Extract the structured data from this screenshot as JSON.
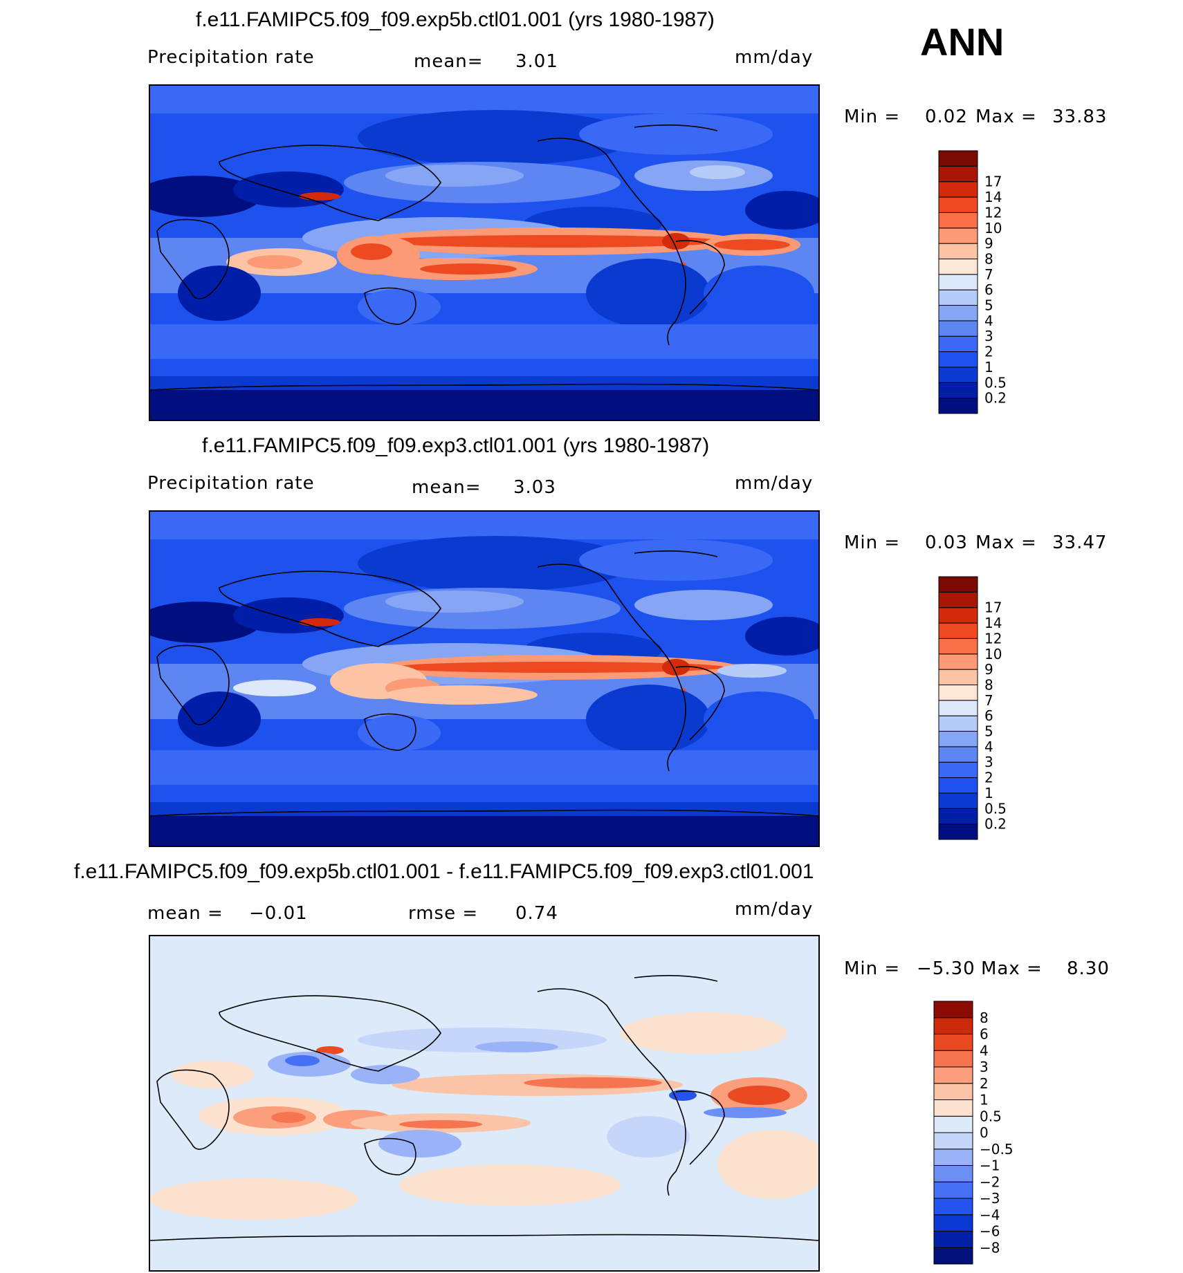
{
  "season": "ANN",
  "panels": [
    {
      "title": "f.e11.FAMIPC5.f09_f09.exp5b.ctl01.001 (yrs 1980-1987)",
      "left_label": "Precipitation rate",
      "mid_label": "mean=",
      "mid_value": "3.01",
      "units": "mm/day",
      "min_label": "Min =",
      "min_value": "0.02",
      "max_label": "Max =",
      "max_value": "33.83"
    },
    {
      "title": "f.e11.FAMIPC5.f09_f09.exp3.ctl01.001 (yrs 1980-1987)",
      "left_label": "Precipitation rate",
      "mid_label": "mean=",
      "mid_value": "3.03",
      "units": "mm/day",
      "min_label": "Min =",
      "min_value": "0.03",
      "max_label": "Max =",
      "max_value": "33.47"
    },
    {
      "title": "f.e11.FAMIPC5.f09_f09.exp5b.ctl01.001 - f.e11.FAMIPC5.f09_f09.exp3.ctl01.001",
      "left_label": "mean =",
      "left_value": "−0.01",
      "mid_label": "rmse =",
      "mid_value": "0.74",
      "units": "mm/day",
      "min_label": "Min =",
      "min_value": "−5.30",
      "max_label": "Max =",
      "max_value": "8.30"
    }
  ],
  "chart_data": [
    {
      "type": "heatmap",
      "title": "f.e11.FAMIPC5.f09_f09.exp5b.ctl01.001 (yrs 1980-1987)",
      "variable": "Precipitation rate",
      "units": "mm/day",
      "mean": 3.01,
      "min": 0.02,
      "max": 33.83,
      "colorbar_levels": [
        "0.2",
        "0.5",
        "1",
        "2",
        "3",
        "4",
        "5",
        "6",
        "7",
        "8",
        "9",
        "10",
        "12",
        "14",
        "17"
      ],
      "colorbar_colors": [
        "#000f80",
        "#001ea8",
        "#0a3ad0",
        "#1d52ef",
        "#3a6af5",
        "#5e86f3",
        "#86a6f5",
        "#b6ccf8",
        "#dde9fb",
        "#fde6d6",
        "#fcc3a4",
        "#fb9a74",
        "#f8704a",
        "#ee4a22",
        "#d32a0c",
        "#a81605",
        "#7a0a02"
      ]
    },
    {
      "type": "heatmap",
      "title": "f.e11.FAMIPC5.f09_f09.exp3.ctl01.001 (yrs 1980-1987)",
      "variable": "Precipitation rate",
      "units": "mm/day",
      "mean": 3.03,
      "min": 0.03,
      "max": 33.47,
      "colorbar_levels": [
        "0.2",
        "0.5",
        "1",
        "2",
        "3",
        "4",
        "5",
        "6",
        "7",
        "8",
        "9",
        "10",
        "12",
        "14",
        "17"
      ],
      "colorbar_colors": [
        "#000f80",
        "#001ea8",
        "#0a3ad0",
        "#1d52ef",
        "#3a6af5",
        "#5e86f3",
        "#86a6f5",
        "#b6ccf8",
        "#dde9fb",
        "#fde6d6",
        "#fcc3a4",
        "#fb9a74",
        "#f8704a",
        "#ee4a22",
        "#d32a0c",
        "#a81605",
        "#7a0a02"
      ]
    },
    {
      "type": "heatmap",
      "title": "f.e11.FAMIPC5.f09_f09.exp5b.ctl01.001 - f.e11.FAMIPC5.f09_f09.exp3.ctl01.001",
      "units": "mm/day",
      "mean": -0.01,
      "rmse": 0.74,
      "min": -5.3,
      "max": 8.3,
      "colorbar_levels": [
        "−8",
        "−6",
        "−4",
        "−3",
        "−2",
        "−1",
        "−0.5",
        "0",
        "0.5",
        "1",
        "2",
        "3",
        "4",
        "6",
        "8"
      ],
      "colorbar_colors": [
        "#00127a",
        "#0020a8",
        "#0a38d2",
        "#2553ef",
        "#4670f4",
        "#6c8ff6",
        "#9ab2f8",
        "#c6d6fa",
        "#dceaf9",
        "#fde3cf",
        "#fcc4a6",
        "#fb9e7b",
        "#f77451",
        "#ea4a22",
        "#cc2a0a",
        "#8a0c02"
      ]
    }
  ]
}
